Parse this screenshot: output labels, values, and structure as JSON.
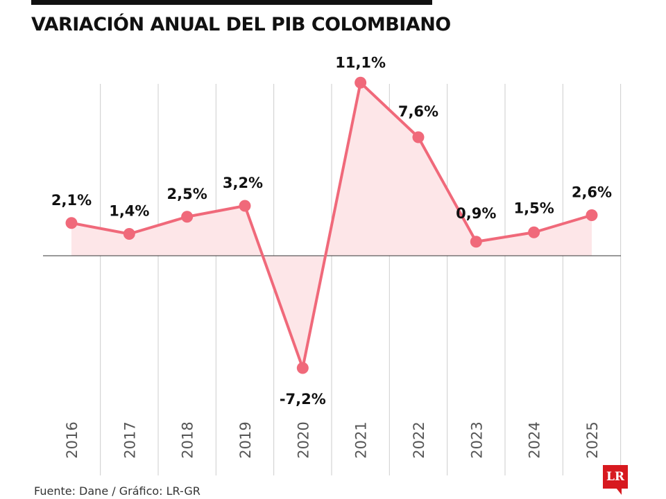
{
  "title": "VARIACIÓN ANUAL DEL PIB COLOMBIANO",
  "source": "Fuente: Dane / Gráfico: LR-GR",
  "logo": "LR",
  "colors": {
    "line": "#f0697a",
    "fill": "#fde6e8",
    "grid": "#cccccc",
    "axis": "#333333"
  },
  "chart_data": {
    "type": "line",
    "title": "VARIACIÓN ANUAL DEL PIB COLOMBIANO",
    "xlabel": "",
    "ylabel": "",
    "categories": [
      "2016",
      "2017",
      "2018",
      "2019",
      "2020",
      "2021",
      "2022",
      "2023",
      "2024",
      "2025"
    ],
    "values": [
      2.1,
      1.4,
      2.5,
      3.2,
      -7.2,
      11.1,
      7.6,
      0.9,
      1.5,
      2.6
    ],
    "labels": [
      "2,1%",
      "1,4%",
      "2,5%",
      "3,2%",
      "-7,2%",
      "11,1%",
      "7,6%",
      "0,9%",
      "1,5%",
      "2,6%"
    ],
    "ylim": [
      -7.2,
      11.1
    ],
    "grid": "vertical",
    "legend": "none"
  }
}
